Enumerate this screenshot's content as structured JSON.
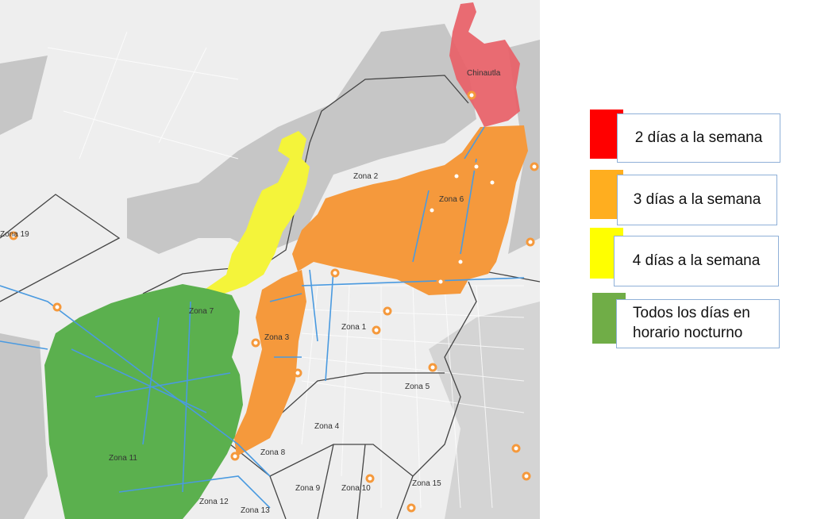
{
  "map": {
    "place_label": "Chinautla",
    "zones": [
      "Zona 19",
      "Zona 2",
      "Zona 6",
      "Zona 7",
      "Zona 1",
      "Zona 3",
      "Zona 5",
      "Zona 4",
      "Zona 8",
      "Zona 11",
      "Zona 9",
      "Zona 10",
      "Zona 15",
      "Zona 12",
      "Zona 13"
    ],
    "colors": {
      "red": "#e8636a",
      "orange": "#f5993c",
      "yellow": "#f4f43a",
      "green": "#5bb04e",
      "pipes": "#4a9ae0",
      "wells": "#f5993c",
      "base": "#ececec",
      "hills": "#c4c4c4"
    }
  },
  "legend": [
    {
      "label": "2 días a la semana",
      "color": "#ff0000"
    },
    {
      "label": "3 días a la semana",
      "color": "#ffae1f"
    },
    {
      "label": "4 días a la semana",
      "color": "#ffff00"
    },
    {
      "label": "Todos los días en horario nocturno",
      "color": "#70ad47"
    }
  ]
}
